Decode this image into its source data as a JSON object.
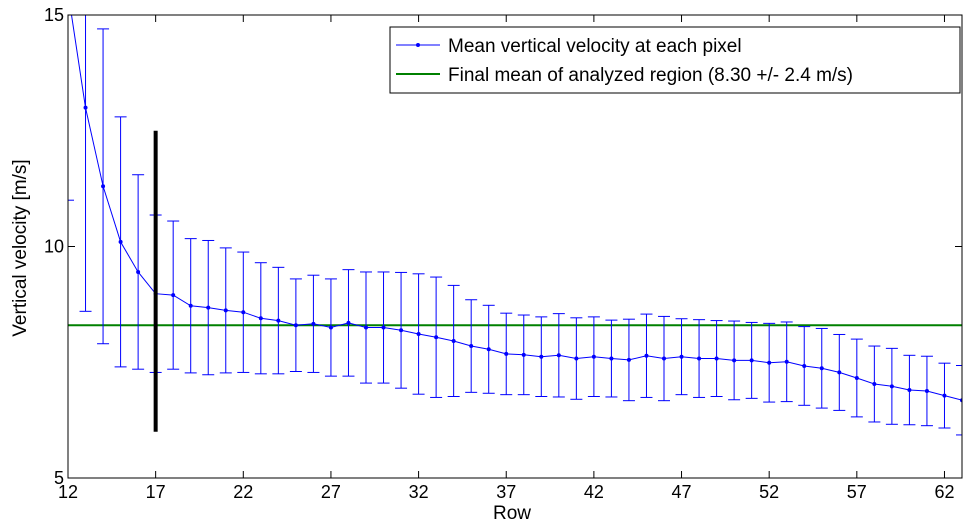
{
  "chart_data": {
    "type": "line",
    "xlabel": "Row",
    "ylabel": "Vertical velocity [m/s]",
    "xlim": [
      12,
      63
    ],
    "ylim": [
      5,
      15
    ],
    "xticks": [
      12,
      17,
      22,
      27,
      32,
      37,
      42,
      47,
      52,
      57,
      62
    ],
    "yticks": [
      5,
      10,
      15
    ],
    "grid": false,
    "legend_position": "top-right",
    "series": [
      {
        "name": "Mean vertical velocity at each pixel",
        "color": "#0000ff",
        "style": "line-with-dot-markers-and-error-bars",
        "x": [
          12,
          13,
          14,
          15,
          16,
          17,
          18,
          19,
          20,
          21,
          22,
          23,
          24,
          25,
          26,
          27,
          28,
          29,
          30,
          31,
          32,
          33,
          34,
          35,
          36,
          37,
          38,
          39,
          40,
          41,
          42,
          43,
          44,
          45,
          46,
          47,
          48,
          49,
          50,
          51,
          52,
          53,
          54,
          55,
          56,
          57,
          58,
          59,
          60,
          61,
          62,
          63
        ],
        "y": [
          15.5,
          13.0,
          11.3,
          10.1,
          9.45,
          8.98,
          8.95,
          8.72,
          8.68,
          8.62,
          8.58,
          8.45,
          8.4,
          8.3,
          8.33,
          8.25,
          8.35,
          8.25,
          8.25,
          8.19,
          8.11,
          8.04,
          7.96,
          7.85,
          7.78,
          7.68,
          7.66,
          7.62,
          7.65,
          7.58,
          7.62,
          7.58,
          7.55,
          7.64,
          7.58,
          7.62,
          7.58,
          7.58,
          7.54,
          7.54,
          7.49,
          7.51,
          7.42,
          7.37,
          7.28,
          7.16,
          7.03,
          6.98,
          6.9,
          6.88,
          6.78,
          6.68
        ],
        "error": [
          4.5,
          4.4,
          3.4,
          2.7,
          2.1,
          1.7,
          1.6,
          1.45,
          1.45,
          1.35,
          1.3,
          1.2,
          1.15,
          1.0,
          1.05,
          1.05,
          1.15,
          1.2,
          1.2,
          1.25,
          1.3,
          1.3,
          1.2,
          1.0,
          0.95,
          0.88,
          0.86,
          0.86,
          0.9,
          0.88,
          0.86,
          0.83,
          0.88,
          0.9,
          0.91,
          0.82,
          0.84,
          0.82,
          0.85,
          0.82,
          0.85,
          0.86,
          0.85,
          0.86,
          0.82,
          0.84,
          0.82,
          0.82,
          0.75,
          0.75,
          0.7,
          0.75
        ]
      },
      {
        "name": "Final mean of analyzed region (8.30 +/- 2.4 m/s)",
        "color": "#008000",
        "style": "horizontal-line",
        "value": 8.3
      }
    ],
    "annotations": [
      {
        "type": "vertical-bar",
        "color": "#000000",
        "x": 17,
        "y_from": 6.0,
        "y_to": 12.5
      }
    ]
  }
}
